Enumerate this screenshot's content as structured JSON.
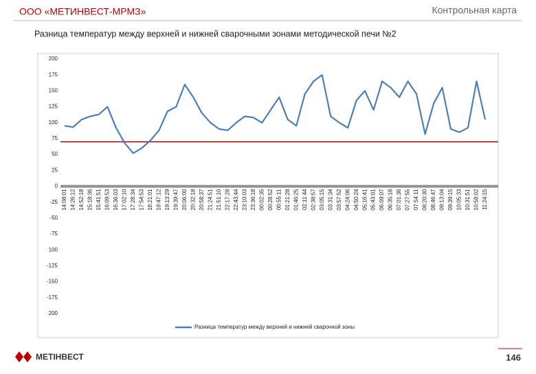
{
  "header": {
    "company": "ООО «МЕТИНВЕСТ-МРМЗ»",
    "section": "Контрольная карта"
  },
  "footer": {
    "logo": "МЕТІНВЕСТ",
    "page": "146"
  },
  "chart_data": {
    "type": "line",
    "title": "Разница температур между верхней и нижней сварочными зонами методической печи №2",
    "categories": [
      "14:08:01",
      "14:26:12",
      "14:52:18",
      "15:18:36",
      "15:41:51",
      "16:09:53",
      "16:36:03",
      "17:02:10",
      "17:28:34",
      "17:54:53",
      "18:21:01",
      "18:47:12",
      "19:13:29",
      "19:39:47",
      "20:06:00",
      "20:32:18",
      "20:58:37",
      "21:24:51",
      "21:51:10",
      "22:17:28",
      "22:43:44",
      "23:10:03",
      "23:36:18",
      "00:02:35",
      "00:28:52",
      "00:55:11",
      "01:21:28",
      "01:46:25",
      "02:11:44",
      "02:38:57",
      "03:05:15",
      "03:31:34",
      "03:57:52",
      "04:24:06",
      "04:50:24",
      "05:16:41",
      "05:43:01",
      "06:09:07",
      "06:35:18",
      "07:01:36",
      "07:27:55",
      "07:54:11",
      "08:20:30",
      "08:46:47",
      "09:13:04",
      "09:39:15",
      "10:05:33",
      "10:31:51",
      "10:58:02",
      "11:24:15"
    ],
    "series": [
      {
        "name": "Разница температур между верхней и нижней сварочной зоны",
        "color": "#4a7ebb",
        "values": [
          95,
          93,
          105,
          110,
          113,
          125,
          92,
          68,
          52,
          60,
          72,
          88,
          118,
          125,
          160,
          140,
          115,
          100,
          90,
          88,
          100,
          110,
          108,
          100,
          120,
          140,
          105,
          95,
          145,
          165,
          175,
          110,
          100,
          92,
          135,
          150,
          120,
          165,
          155,
          140,
          165,
          145,
          82,
          130,
          155,
          90,
          85,
          92,
          165,
          105
        ]
      }
    ],
    "reference_lines": [
      {
        "value": 70,
        "color": "#a00000"
      },
      {
        "value": 0,
        "color": "#909090"
      }
    ],
    "ylim": [
      -200,
      200
    ],
    "yticks": [
      200,
      175,
      150,
      125,
      100,
      75,
      50,
      25,
      0,
      -25,
      -50,
      -75,
      {
        "value": -100,
        "label": "100"
      },
      -125,
      -150,
      -175,
      {
        "value": -200,
        "label": "200"
      }
    ],
    "grid": false,
    "legend": "bottom"
  }
}
